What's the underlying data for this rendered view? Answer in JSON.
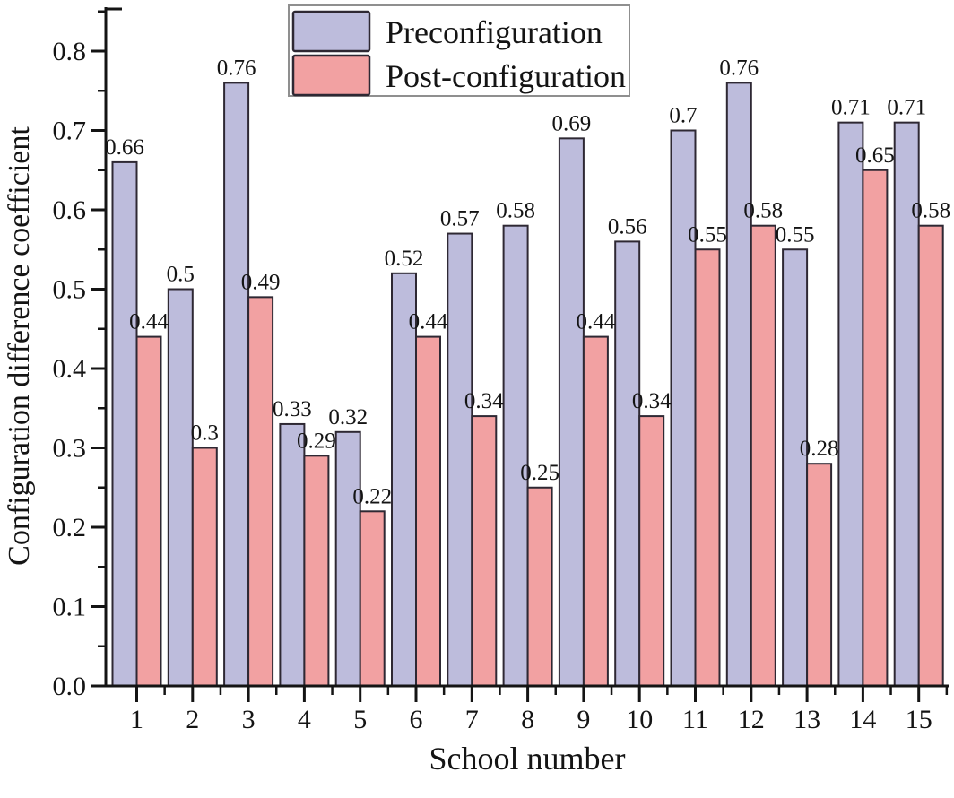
{
  "chart_data": {
    "type": "bar",
    "title": "",
    "xlabel": "School number",
    "ylabel": "Configuration difference coefficient",
    "categories": [
      "1",
      "2",
      "3",
      "4",
      "5",
      "6",
      "7",
      "8",
      "9",
      "10",
      "11",
      "12",
      "13",
      "14",
      "15"
    ],
    "series": [
      {
        "name": "Preconfiguration",
        "color": "#bdbcdc",
        "values": [
          0.66,
          0.5,
          0.76,
          0.33,
          0.32,
          0.52,
          0.57,
          0.58,
          0.69,
          0.56,
          0.7,
          0.76,
          0.55,
          0.71,
          0.71
        ]
      },
      {
        "name": "Post-configuration",
        "color": "#f2a1a2",
        "values": [
          0.44,
          0.3,
          0.49,
          0.29,
          0.22,
          0.44,
          0.34,
          0.25,
          0.44,
          0.34,
          0.55,
          0.58,
          0.28,
          0.65,
          0.58
        ]
      }
    ],
    "value_labels_shown": true,
    "ylim": [
      0,
      0.855
    ],
    "yticks": [
      0.0,
      0.1,
      0.2,
      0.3,
      0.4,
      0.5,
      0.6,
      0.7,
      0.8
    ],
    "ytick_decimals": 1,
    "grid": false,
    "legend_position": "top-inside"
  },
  "style": {
    "background": "#ffffff",
    "bar_border_color": "#2e2833",
    "axis_color": "#141414",
    "text_color": "#141414",
    "legend_border_color": "#8f8f8f",
    "legend_fill": "#ffffff"
  }
}
